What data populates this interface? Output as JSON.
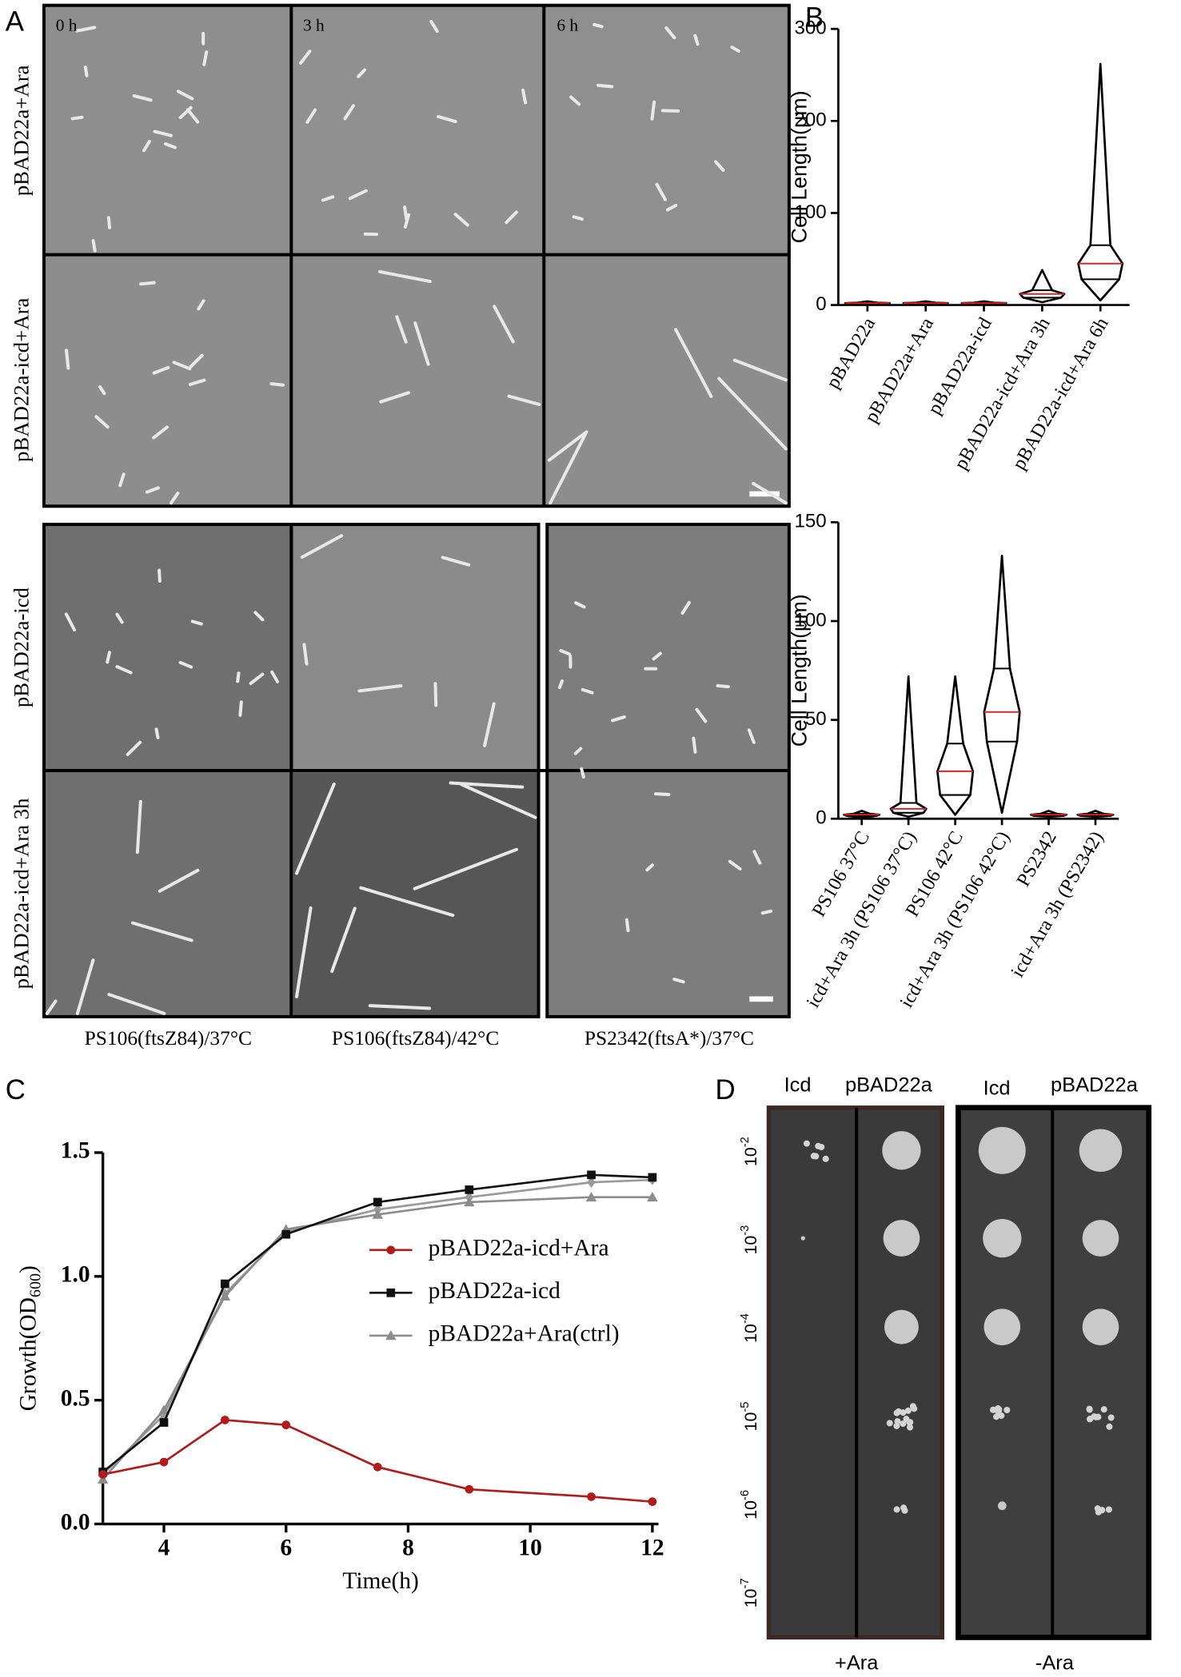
{
  "panel_labels": {
    "a": "A",
    "b": "B",
    "c": "C",
    "d": "D"
  },
  "panel_a": {
    "time_labels": [
      "0 h",
      "3 h",
      "6 h"
    ],
    "row_labels": [
      "pBAD22a+Ara",
      "pBAD22a-icd+Ara"
    ],
    "lower_row_labels": [
      "pBAD22a-icd",
      "pBAD22a-icd+Ara 3h"
    ],
    "strain_labels": [
      "PS106(ftsZ84)/37°C",
      "PS106(ftsZ84)/42°C",
      "PS2342(ftsA*)/37°C"
    ]
  },
  "panel_d": {
    "column_labels": [
      "Icd",
      "pBAD22a",
      "Icd",
      "pBAD22a"
    ],
    "dilutions": [
      {
        "base": "10",
        "exponent": "-2"
      },
      {
        "base": "10",
        "exponent": "-3"
      },
      {
        "base": "10",
        "exponent": "-4"
      },
      {
        "base": "10",
        "exponent": "-5"
      },
      {
        "base": "10",
        "exponent": "-6"
      },
      {
        "base": "10",
        "exponent": "-7"
      }
    ],
    "plate_labels": [
      "+Ara",
      "-Ara"
    ]
  },
  "chart_data": [
    {
      "type": "violin",
      "y_label": "Cell Length(μm)",
      "categories": [
        "pBAD22a",
        "pBAD22a+Ara",
        "pBAD22a-icd",
        "pBAD22a-icd+Ara 3h",
        "pBAD22a-icd+Ara 6h"
      ],
      "min": [
        1,
        1,
        1,
        3,
        5
      ],
      "q1": [
        1.5,
        1.5,
        1.5,
        8,
        28
      ],
      "median": [
        2,
        2,
        2,
        12,
        45
      ],
      "q3": [
        2.5,
        2.5,
        2.5,
        16,
        65
      ],
      "max": [
        4,
        4,
        4,
        38,
        262
      ],
      "ylim": [
        0,
        300
      ],
      "yticks": [
        0,
        100,
        200,
        300
      ],
      "color": "#000000",
      "median_color": "#d62728"
    },
    {
      "type": "violin",
      "y_label": "Cell Length(μm)",
      "categories": [
        "PS106 37°C",
        "icd+Ara 3h (PS106 37°C)",
        "PS106 42°C",
        "icd+Ara 3h (PS106 42°C)",
        "PS2342",
        "icd+Ara 3h (PS2342)"
      ],
      "min": [
        0.5,
        1,
        2,
        3,
        1,
        1
      ],
      "q1": [
        1.5,
        3,
        12,
        39,
        1.5,
        1.5
      ],
      "median": [
        2,
        5,
        24,
        54,
        2,
        2
      ],
      "q3": [
        2.5,
        8,
        38,
        76,
        2.5,
        2.5
      ],
      "max": [
        4,
        72,
        72,
        133,
        4,
        4
      ],
      "ylim": [
        0,
        150
      ],
      "yticks": [
        0,
        50,
        100,
        150
      ],
      "color": "#000000",
      "median_color": "#d62728"
    },
    {
      "type": "line",
      "x_label": "Time(h)",
      "y_label": {
        "text": "Growth(OD",
        "subscript": "600",
        "suffix": ")"
      },
      "x": [
        3,
        4,
        5,
        6,
        7.5,
        9,
        11,
        12
      ],
      "series": [
        {
          "name": "pBAD22a-icd+Ara",
          "color": "#b01c1c",
          "marker": "circle",
          "values": [
            0.2,
            0.25,
            0.42,
            0.4,
            0.23,
            0.14,
            0.11,
            0.09
          ]
        },
        {
          "name": "pBAD22a-icd",
          "color": "#111111",
          "marker": "square",
          "values": [
            0.21,
            0.41,
            0.97,
            1.17,
            1.3,
            1.35,
            1.41,
            1.4
          ]
        },
        {
          "name": "pBAD22a+Ara(ctrl)",
          "color": "#8c8c8c",
          "marker": "triangle",
          "values": [
            0.18,
            0.46,
            0.92,
            1.19,
            1.25,
            1.3,
            1.32,
            1.32
          ]
        },
        {
          "color": "#9a9a9a",
          "marker": "diamond",
          "values": [
            0.2,
            0.44,
            0.93,
            1.18,
            1.27,
            1.32,
            1.38,
            1.39
          ]
        }
      ],
      "xlim": [
        3,
        12.1
      ],
      "xticks": [
        4,
        6,
        8,
        10,
        12
      ],
      "ylim": [
        0,
        1.5
      ],
      "yticks": [
        {
          "value": 0,
          "label": "0.0"
        },
        0.5,
        {
          "value": 1,
          "label": "1.0"
        },
        1.5
      ]
    }
  ]
}
